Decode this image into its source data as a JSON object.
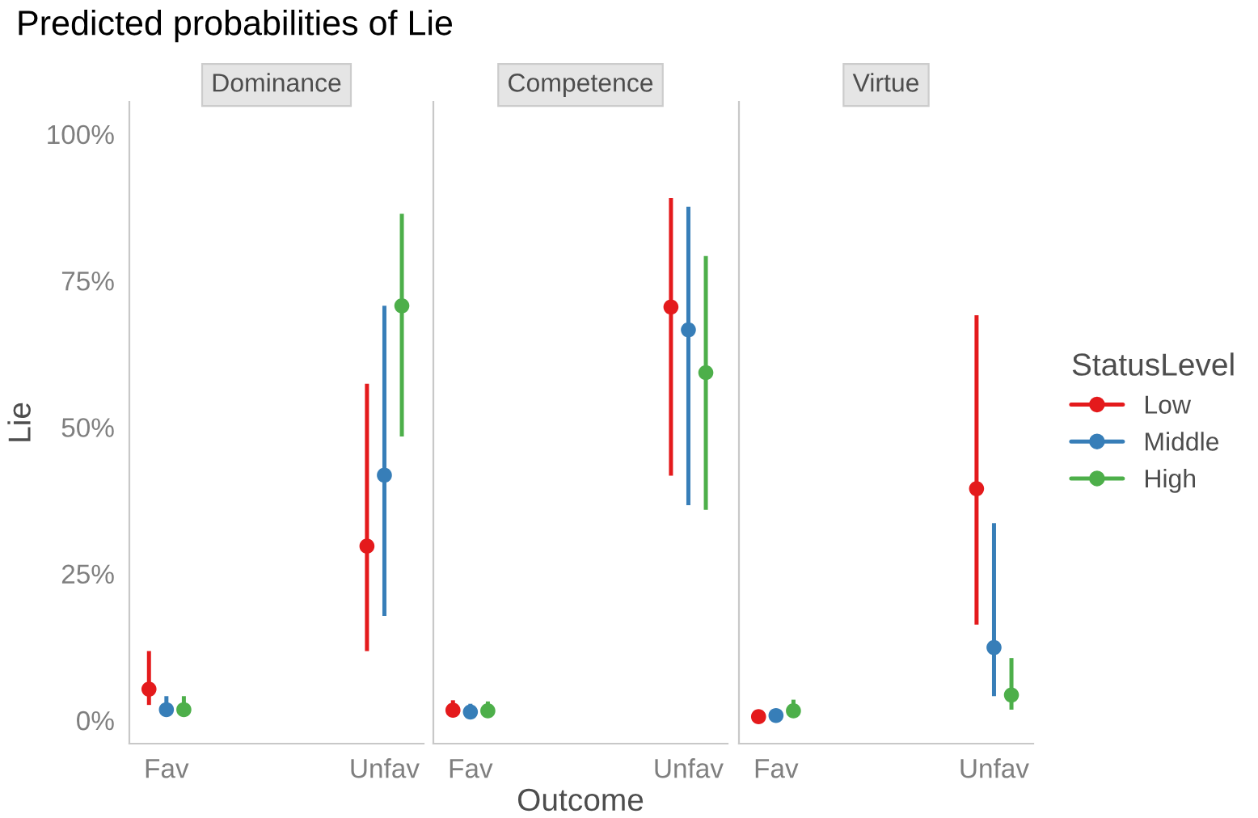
{
  "chart_data": [
    {
      "type": "scatter",
      "title": "Predicted probabilities of Lie",
      "subtitle": "Dominance",
      "ylabel": "Lie",
      "categories": [
        "Fav",
        "Unfav"
      ],
      "ylim": [
        -4,
        105.5
      ],
      "yticks": [
        {
          "value": 0,
          "label": "0%"
        },
        {
          "value": 25,
          "label": "25%"
        },
        {
          "value": 50,
          "label": "50%"
        },
        {
          "value": 75,
          "label": "75%"
        },
        {
          "value": 100,
          "label": "100%"
        }
      ],
      "grid": false,
      "marker": "circle",
      "series": [
        {
          "color": "#e41a1c",
          "values": [
            5.3,
            29.7
          ],
          "errors": [
            [
              2.6,
              11.8
            ],
            [
              11.8,
              57.4
            ]
          ]
        },
        {
          "color": "#377eb8",
          "values": [
            1.8,
            41.8
          ],
          "errors": [
            [
              1.0,
              4.1
            ],
            [
              17.8,
              70.7
            ]
          ]
        },
        {
          "color": "#4daf4a",
          "values": [
            1.8,
            70.7
          ],
          "errors": [
            [
              1.0,
              4.1
            ],
            [
              48.4,
              86.4
            ]
          ]
        }
      ]
    },
    {
      "type": "scatter",
      "subtitle": "Competence",
      "xlabel": "Outcome",
      "categories": [
        "Fav",
        "Unfav"
      ],
      "ylim": [
        -4,
        105.5
      ],
      "tick_labels": "x",
      "grid": false,
      "marker": "circle",
      "series": [
        {
          "color": "#e41a1c",
          "values": [
            1.7,
            70.5
          ],
          "errors": [
            [
              0.8,
              3.4
            ],
            [
              41.7,
              89.1
            ]
          ]
        },
        {
          "color": "#377eb8",
          "values": [
            1.4,
            66.6
          ],
          "errors": [
            [
              0.7,
              2.8
            ],
            [
              36.7,
              87.6
            ]
          ]
        },
        {
          "color": "#4daf4a",
          "values": [
            1.6,
            59.3
          ],
          "errors": [
            [
              0.8,
              3.2
            ],
            [
              35.9,
              79.2
            ]
          ]
        }
      ]
    },
    {
      "type": "scatter",
      "subtitle": "Virtue",
      "categories": [
        "Fav",
        "Unfav"
      ],
      "ylim": [
        -4,
        105.5
      ],
      "tick_labels": "x",
      "grid": false,
      "marker": "circle",
      "legend": "right",
      "legend_title": "StatusLevel",
      "series": [
        {
          "name": "Low",
          "color": "#e41a1c",
          "values": [
            0.6,
            39.5
          ],
          "errors": [
            [
              0.3,
              1.2
            ],
            [
              16.3,
              69.1
            ]
          ]
        },
        {
          "name": "Middle",
          "color": "#377eb8",
          "values": [
            0.8,
            12.4
          ],
          "errors": [
            [
              0.4,
              1.5
            ],
            [
              4.1,
              33.6
            ]
          ]
        },
        {
          "name": "High",
          "color": "#4daf4a",
          "values": [
            1.6,
            4.3
          ],
          "errors": [
            [
              0.8,
              3.5
            ],
            [
              1.8,
              10.6
            ]
          ]
        }
      ]
    }
  ]
}
